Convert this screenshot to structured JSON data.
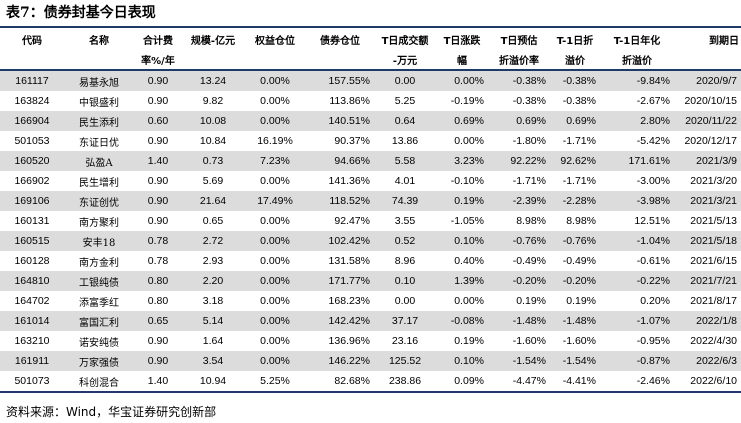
{
  "title": "表7：债券封基今日表现",
  "columns": [
    {
      "l1": "代码",
      "l2": ""
    },
    {
      "l1": "名称",
      "l2": ""
    },
    {
      "l1": "合计费",
      "l2": "率%/年"
    },
    {
      "l1": "规模-亿元",
      "l2": ""
    },
    {
      "l1": "权益仓位",
      "l2": ""
    },
    {
      "l1": "债券仓位",
      "l2": ""
    },
    {
      "l1": "T日成交额",
      "l2": "-万元"
    },
    {
      "l1": "T日涨跌",
      "l2": "幅"
    },
    {
      "l1": "T日预估",
      "l2": "折溢价率"
    },
    {
      "l1": "T-1日折",
      "l2": "溢价"
    },
    {
      "l1": "T-1日年化",
      "l2": "折溢价"
    },
    {
      "l1": "到期日",
      "l2": ""
    }
  ],
  "rows": [
    [
      "161117",
      "易基永旭",
      "0.90",
      "13.24",
      "0.00%",
      "157.55%",
      "0.00",
      "0.00%",
      "-0.38%",
      "-0.38%",
      "-9.84%",
      "2020/9/7"
    ],
    [
      "163824",
      "中银盛利",
      "0.90",
      "9.82",
      "0.00%",
      "113.86%",
      "5.25",
      "-0.19%",
      "-0.38%",
      "-0.38%",
      "-2.67%",
      "2020/10/15"
    ],
    [
      "166904",
      "民生添利",
      "0.60",
      "10.08",
      "0.00%",
      "140.51%",
      "0.64",
      "0.69%",
      "0.69%",
      "0.69%",
      "2.80%",
      "2020/11/22"
    ],
    [
      "501053",
      "东证日优",
      "0.90",
      "10.84",
      "16.19%",
      "90.37%",
      "13.86",
      "0.00%",
      "-1.80%",
      "-1.71%",
      "-5.42%",
      "2020/12/17"
    ],
    [
      "160520",
      "弘盈A",
      "1.40",
      "0.73",
      "7.23%",
      "94.66%",
      "5.58",
      "3.23%",
      "92.22%",
      "92.62%",
      "171.61%",
      "2021/3/9"
    ],
    [
      "166902",
      "民生增利",
      "0.90",
      "5.69",
      "0.00%",
      "141.36%",
      "4.01",
      "-0.10%",
      "-1.71%",
      "-1.71%",
      "-3.00%",
      "2021/3/20"
    ],
    [
      "169106",
      "东证创优",
      "0.90",
      "21.64",
      "17.49%",
      "118.52%",
      "74.39",
      "0.19%",
      "-2.39%",
      "-2.28%",
      "-3.98%",
      "2021/3/21"
    ],
    [
      "160131",
      "南方聚利",
      "0.90",
      "0.65",
      "0.00%",
      "92.47%",
      "3.55",
      "-1.05%",
      "8.98%",
      "8.98%",
      "12.51%",
      "2021/5/13"
    ],
    [
      "160515",
      "安丰18",
      "0.78",
      "2.72",
      "0.00%",
      "102.42%",
      "0.52",
      "0.10%",
      "-0.76%",
      "-0.76%",
      "-1.04%",
      "2021/5/18"
    ],
    [
      "160128",
      "南方金利",
      "0.78",
      "2.93",
      "0.00%",
      "131.58%",
      "8.96",
      "0.40%",
      "-0.49%",
      "-0.49%",
      "-0.61%",
      "2021/6/15"
    ],
    [
      "164810",
      "工银纯债",
      "0.80",
      "2.20",
      "0.00%",
      "171.77%",
      "0.10",
      "1.39%",
      "-0.20%",
      "-0.20%",
      "-0.22%",
      "2021/7/21"
    ],
    [
      "164702",
      "添富季红",
      "0.80",
      "3.18",
      "0.00%",
      "168.23%",
      "0.00",
      "0.00%",
      "0.19%",
      "0.19%",
      "0.20%",
      "2021/8/17"
    ],
    [
      "161014",
      "富国汇利",
      "0.65",
      "5.14",
      "0.00%",
      "142.42%",
      "37.17",
      "-0.08%",
      "-1.48%",
      "-1.48%",
      "-1.07%",
      "2022/1/8"
    ],
    [
      "163210",
      "诺安纯债",
      "0.90",
      "1.64",
      "0.00%",
      "136.96%",
      "23.16",
      "0.19%",
      "-1.60%",
      "-1.60%",
      "-0.95%",
      "2022/4/30"
    ],
    [
      "161911",
      "万家强债",
      "0.90",
      "3.54",
      "0.00%",
      "146.22%",
      "125.52",
      "0.10%",
      "-1.54%",
      "-1.54%",
      "-0.87%",
      "2022/6/3"
    ],
    [
      "501073",
      "科创混合",
      "1.40",
      "10.94",
      "5.25%",
      "82.68%",
      "238.86",
      "0.09%",
      "-4.47%",
      "-4.41%",
      "-2.46%",
      "2022/6/10"
    ]
  ],
  "source": "资料来源：Wind，华宝证券研究创新部"
}
